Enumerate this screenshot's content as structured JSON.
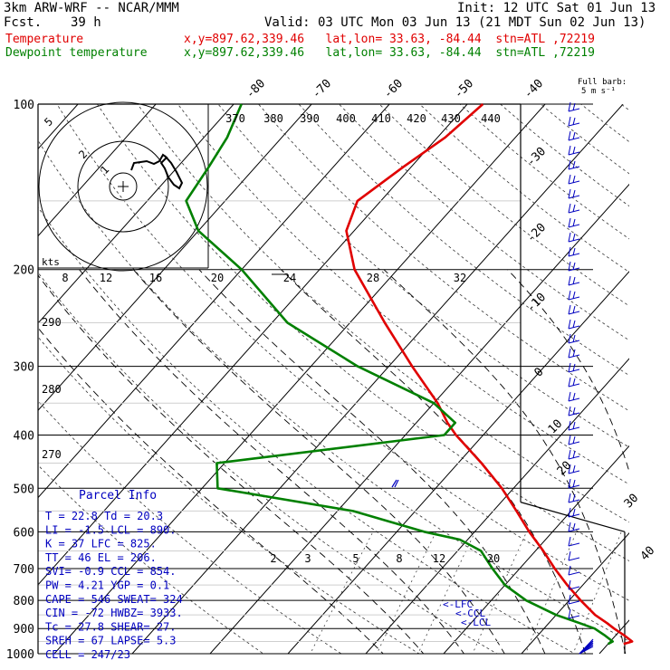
{
  "header": {
    "model": "3km ARW-WRF -- NCAR/MMM",
    "init": "Init: 12 UTC Sat 01 Jun 13",
    "fcst_label": "Fcst.",
    "fcst_value": "39 h",
    "valid": "Valid: 03 UTC Mon 03 Jun 13 (21 MDT Sun 02 Jun 13)",
    "temp_label": "Temperature",
    "temp_info": "x,y=897.62,339.46   lat,lon= 33.63, -84.44  stn=ATL ,72219",
    "dew_label": "Dewpoint temperature",
    "dew_info": "x,y=897.62,339.46   lat,lon= 33.63, -84.44  stn=ATL ,72219"
  },
  "full_barb": {
    "line1": "Full barb:",
    "line2": "5 m s⁻¹"
  },
  "parcel": {
    "title": "Parcel Info",
    "rows": [
      "T  =   22.8  Td =  20.3",
      "LI =   -1.5  LCL =  890.",
      "K  =     37  LFC =  825.",
      "TT =     46  EL  =  206.",
      "SVI=   -0.9  CCL =  854.",
      "PW =   4.21  YGP =   0.1",
      "CAPE =  546  SWEAT=  324",
      "CIN  =  -72  HWBZ= 3933.",
      "Tc  =  27.8  SHEAR=  27.",
      "SREH =   67  LAPSE=  5.3",
      "CELL = 247/23"
    ]
  },
  "hodograph": {
    "units_label": "kts",
    "ring_labels": [
      "5",
      "2",
      "1"
    ]
  },
  "level_markers": [
    "<-LFC",
    "<-CCL",
    "<-LCL"
  ],
  "colors": {
    "temperature": "#e00000",
    "dewpoint": "#008000",
    "wind": "#0000c0"
  },
  "chart_data": {
    "type": "line",
    "title": "",
    "ylabel": "",
    "xlabel": "",
    "y_scale": "log-pressure",
    "y_ticks": [
      100,
      200,
      300,
      400,
      500,
      600,
      700,
      800,
      900,
      1000
    ],
    "isotherm_labels_top": [
      "-80",
      "-70",
      "-60",
      "-50",
      "-40"
    ],
    "isotherm_labels_right": [
      "-30",
      "-20",
      "-10",
      "0",
      "10",
      "20",
      "30",
      "40"
    ],
    "theta_labels_top": [
      "370",
      "380",
      "390",
      "400",
      "410",
      "420",
      "430",
      "440"
    ],
    "theta_labels_left": [
      "290",
      "280",
      "270"
    ],
    "hodo_axis_labels": [
      "8",
      "12",
      "16",
      "20",
      "24",
      "28",
      "32"
    ],
    "mixing_ratio_labels": [
      "2",
      "3",
      "5",
      "8",
      "12",
      "20"
    ],
    "series": [
      {
        "name": "Temperature",
        "p": [
          960,
          950,
          925,
          900,
          880,
          850,
          800,
          750,
          700,
          650,
          600,
          550,
          500,
          450,
          400,
          380,
          350,
          300,
          250,
          200,
          170,
          150,
          130,
          115,
          100
        ],
        "t": [
          22,
          22.8,
          21,
          19,
          17.5,
          15,
          11.5,
          8,
          4.5,
          1,
          -3,
          -7,
          -11.5,
          -17,
          -23.5,
          -26,
          -29.5,
          -37,
          -45.5,
          -55.5,
          -61,
          -63,
          -61,
          -59,
          -58
        ]
      },
      {
        "name": "Dewpoint temperature",
        "p": [
          960,
          950,
          925,
          900,
          880,
          850,
          800,
          750,
          700,
          650,
          620,
          600,
          550,
          500,
          450,
          400,
          380,
          350,
          300,
          250,
          200,
          170,
          150,
          130,
          115,
          100
        ],
        "t": [
          20,
          20.3,
          18.5,
          16.5,
          14,
          10,
          4.5,
          0,
          -3.5,
          -7,
          -11,
          -16.5,
          -28,
          -48,
          -51,
          -25,
          -25,
          -30,
          -44,
          -58,
          -70,
          -80,
          -85,
          -86,
          -87,
          -89
        ]
      }
    ]
  }
}
